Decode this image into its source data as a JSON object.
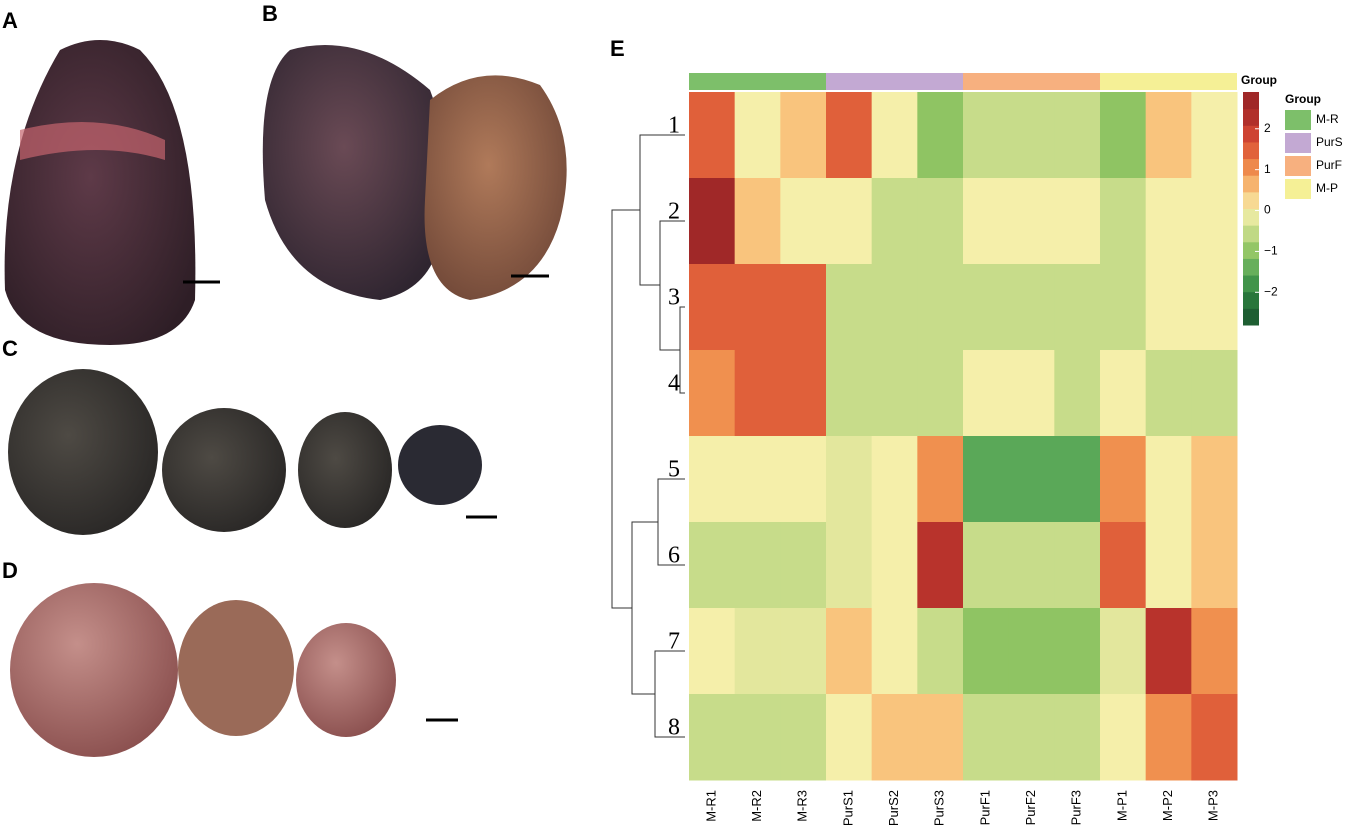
{
  "panels": [
    "A",
    "B",
    "C",
    "D",
    "E"
  ],
  "chart_data": {
    "type": "heatmap",
    "rows": [
      "1",
      "2",
      "3",
      "4",
      "5",
      "6",
      "7",
      "8"
    ],
    "columns": [
      "M-R1",
      "M-R2",
      "M-R3",
      "PurS1",
      "PurS2",
      "PurS3",
      "PurF1",
      "PurF2",
      "PurF3",
      "M-P1",
      "M-P2",
      "M-P3"
    ],
    "values": [
      [
        1.5,
        0,
        0.5,
        1.5,
        0,
        -1,
        -0.5,
        -0.5,
        -0.5,
        -1,
        0.5,
        0
      ],
      [
        2.5,
        0.5,
        0,
        0,
        -0.5,
        -0.5,
        0,
        0,
        0,
        -0.5,
        0,
        0
      ],
      [
        1.5,
        1.5,
        1.5,
        -0.5,
        -0.5,
        -0.5,
        -0.5,
        -0.5,
        -0.5,
        -0.5,
        0,
        0
      ],
      [
        1,
        1.5,
        1.5,
        -0.5,
        -0.5,
        -0.5,
        0,
        0,
        -0.5,
        0,
        -0.5,
        -0.5
      ],
      [
        0,
        0,
        0,
        -0.2,
        0,
        1,
        -1.5,
        -1.5,
        -1.5,
        1,
        0,
        0.5
      ],
      [
        -0.5,
        -0.5,
        -0.5,
        -0.2,
        0,
        2.2,
        -0.5,
        -0.5,
        -0.5,
        1.5,
        0,
        0.5
      ],
      [
        0,
        -0.2,
        -0.2,
        0.5,
        0,
        -0.5,
        -1,
        -1,
        -1,
        -0.2,
        2.2,
        1
      ],
      [
        -0.5,
        -0.5,
        -0.5,
        0,
        0.5,
        0.5,
        -0.5,
        -0.5,
        -0.5,
        0,
        1,
        1.5
      ]
    ],
    "colorscale": [
      [
        -2.5,
        "#1e5e32"
      ],
      [
        -2,
        "#2e8540"
      ],
      [
        -1.5,
        "#5aa858"
      ],
      [
        -1,
        "#8fc463"
      ],
      [
        -0.5,
        "#c7dc8a"
      ],
      [
        0,
        "#f5efaa"
      ],
      [
        0.5,
        "#f9c47d"
      ],
      [
        1,
        "#f0904f"
      ],
      [
        1.5,
        "#e0603a"
      ],
      [
        2,
        "#c83a2f"
      ],
      [
        2.5,
        "#a02828"
      ]
    ],
    "ylim": [
      -2.8,
      2.9
    ],
    "yticks": [
      2,
      1,
      0,
      {
        "value": -1,
        "label": "−1"
      },
      {
        "value": -2,
        "label": "−2"
      }
    ],
    "group_label": "Group",
    "legend_title": "Group",
    "groups": [
      {
        "name": "M-R",
        "color": "#7dbf6a",
        "span": 3
      },
      {
        "name": "PurS",
        "color": "#c3a9d3",
        "span": 3
      },
      {
        "name": "PurF",
        "color": "#f7b07f",
        "span": 3
      },
      {
        "name": "M-P",
        "color": "#f5f096",
        "span": 3
      }
    ]
  }
}
